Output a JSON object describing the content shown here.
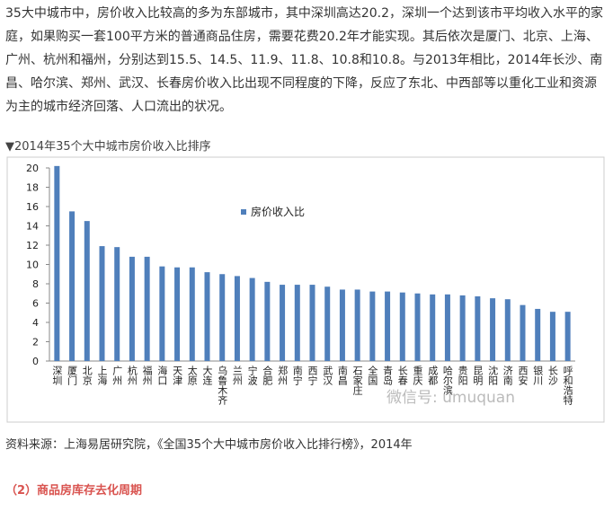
{
  "paragraph": "35大中城市中，房价收入比较高的多为东部城市，其中深圳高达20.2，深圳一个达到该市平均收入水平的家庭，如果购买一套100平方米的普通商品住房，需要花费20.2年才能实现。其后依次是厦门、北京、上海、广州、杭州和福州，分别达到15.5、14.5、11.9、11.8、10.8和10.8。与2013年相比，2014年长沙、南昌、哈尔滨、郑州、武汉、长春房价收入比出现不同程度的下降，反应了东北、中西部等以重化工业和资源为主的城市经济回落、人口流出的状况。",
  "chart_data": {
    "type": "bar",
    "title": "▼2014年35个大中城市房价收入比排序",
    "categories": [
      "深圳",
      "厦门",
      "北京",
      "上海",
      "广州",
      "杭州",
      "福州",
      "海口",
      "天津",
      "太原",
      "大连",
      "乌鲁木齐",
      "兰州",
      "宁波",
      "合肥",
      "郑州",
      "南宁",
      "西宁",
      "武汉",
      "南昌",
      "石家庄",
      "全国",
      "青岛",
      "长春",
      "重庆",
      "成都",
      "哈尔滨",
      "贵阳",
      "昆明",
      "沈阳",
      "济南",
      "西安",
      "银川",
      "长沙",
      "呼和浩特"
    ],
    "series": [
      {
        "name": "房价收入比",
        "color": "#4f7fbb",
        "values": [
          20.2,
          15.5,
          14.5,
          11.9,
          11.8,
          10.8,
          10.8,
          9.8,
          9.7,
          9.7,
          9.2,
          9.0,
          8.8,
          8.6,
          8.2,
          7.9,
          7.9,
          7.9,
          7.7,
          7.4,
          7.4,
          7.2,
          7.2,
          7.1,
          7.0,
          6.9,
          6.9,
          6.8,
          6.7,
          6.5,
          6.4,
          5.8,
          5.4,
          5.1,
          5.1
        ]
      }
    ],
    "ylim": [
      0,
      20
    ],
    "yticks": [
      0,
      2,
      4,
      6,
      8,
      10,
      12,
      14,
      16,
      18,
      20
    ],
    "grid": false
  },
  "watermark": "微信号: umuquan",
  "source": "资料来源：上海易居研究院，《全国35个大中城市房价收入比排行榜》，2014年",
  "section_heading": "（2）商品房库存去化周期"
}
